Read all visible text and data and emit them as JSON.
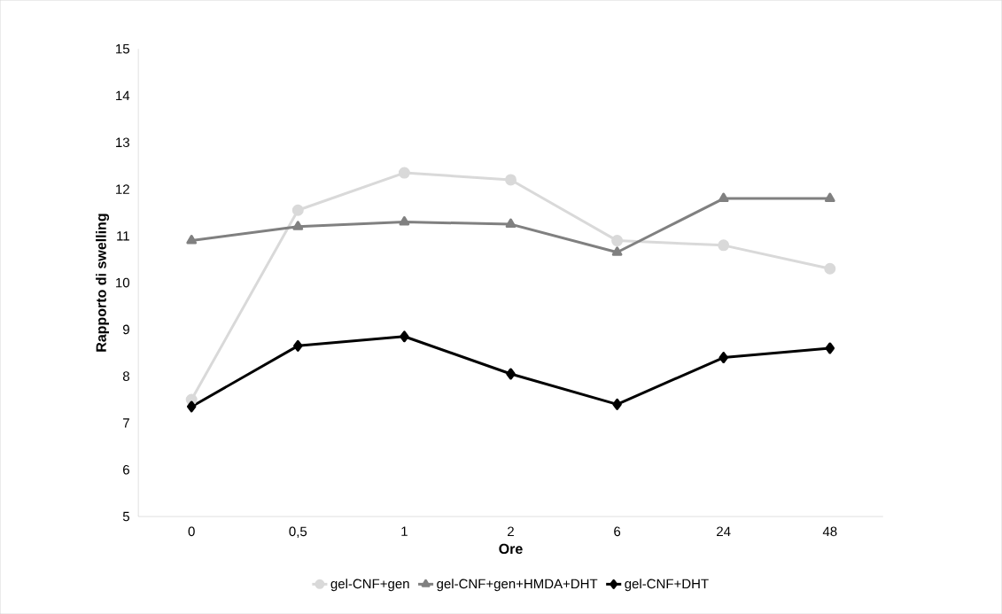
{
  "chart_data": {
    "type": "line",
    "xlabel": "Ore",
    "ylabel": "Rapporto di swelling",
    "categories": [
      "0",
      "0,5",
      "1",
      "2",
      "6",
      "24",
      "48"
    ],
    "ylim": [
      5,
      15
    ],
    "yticks": [
      5,
      6,
      7,
      8,
      9,
      10,
      11,
      12,
      13,
      14,
      15
    ],
    "grid": false,
    "legend": "bottom",
    "line_style": "solid",
    "series": [
      {
        "name": "gel-CNF+gen",
        "color": "#d9d9d9",
        "marker": "circle",
        "values": [
          7.5,
          11.55,
          12.35,
          12.2,
          10.9,
          10.8,
          10.3
        ]
      },
      {
        "name": "gel-CNF+gen+HMDA+DHT",
        "color": "#808080",
        "marker": "triangle",
        "values": [
          10.9,
          11.2,
          11.3,
          11.25,
          10.65,
          11.8,
          11.8
        ]
      },
      {
        "name": "gel-CNF+DHT",
        "color": "#000000",
        "marker": "diamond",
        "values": [
          7.35,
          8.65,
          8.85,
          8.05,
          7.4,
          8.4,
          8.6
        ]
      }
    ]
  }
}
